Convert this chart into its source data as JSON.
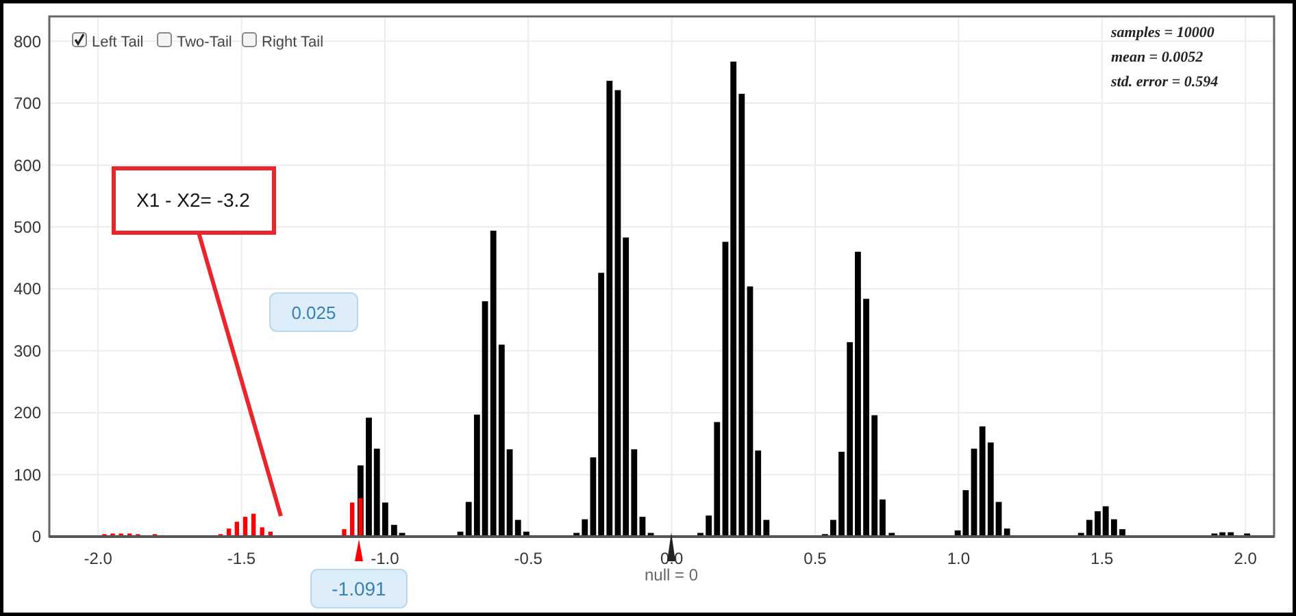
{
  "chart_data": {
    "type": "bar",
    "grid": true,
    "xlim": [
      -2.17,
      2.1
    ],
    "ylim": [
      0,
      840
    ],
    "xticks": [
      {
        "value": -2,
        "label": "-2.0"
      },
      {
        "value": -1.5,
        "label": "-1.5"
      },
      {
        "value": -1,
        "label": "-1.0"
      },
      {
        "value": -0.5,
        "label": "-0.5"
      },
      {
        "value": 0,
        "label": "0.0"
      },
      {
        "value": 0.5,
        "label": "0.5"
      },
      {
        "value": 1,
        "label": "1.0"
      },
      {
        "value": 1.5,
        "label": "1.5"
      },
      {
        "value": 2,
        "label": "2.0"
      }
    ],
    "yticks": [
      0,
      100,
      200,
      300,
      400,
      500,
      600,
      700,
      800
    ],
    "series": [
      {
        "color": "#000000",
        "x": [
          -1.085,
          -1.056,
          -1.028,
          -0.999,
          -0.968,
          -0.94,
          -0.737,
          -0.708,
          -0.679,
          -0.651,
          -0.622,
          -0.593,
          -0.565,
          -0.536,
          -0.507,
          -0.332,
          -0.303,
          -0.274,
          -0.246,
          -0.217,
          -0.188,
          -0.16,
          -0.131,
          -0.102,
          -0.073,
          0.1,
          0.129,
          0.158,
          0.187,
          0.215,
          0.244,
          0.273,
          0.301,
          0.33,
          0.534,
          0.563,
          0.592,
          0.621,
          0.649,
          0.678,
          0.707,
          0.735,
          0.767,
          0.997,
          1.025,
          1.054,
          1.083,
          1.112,
          1.14,
          1.169,
          1.427,
          1.456,
          1.485,
          1.513,
          1.542,
          1.571,
          1.892,
          1.92,
          1.949,
          2.006
        ],
        "values": [
          115,
          192,
          142,
          55,
          19,
          6,
          8,
          56,
          197,
          380,
          494,
          310,
          141,
          27,
          8,
          6,
          28,
          128,
          426,
          736,
          721,
          483,
          141,
          32,
          6,
          6,
          34,
          185,
          476,
          767,
          715,
          404,
          139,
          27,
          4,
          27,
          137,
          314,
          460,
          384,
          196,
          60,
          6,
          10,
          75,
          142,
          178,
          152,
          56,
          13,
          6,
          27,
          41,
          49,
          28,
          12,
          5,
          7,
          7,
          5
        ]
      },
      {
        "color": "#ff0000",
        "x": [
          -1.978,
          -1.949,
          -1.92,
          -1.89,
          -1.861,
          -1.802,
          -1.573,
          -1.544,
          -1.516,
          -1.487,
          -1.458,
          -1.428,
          -1.399,
          -1.142,
          -1.114,
          -1.085
        ],
        "values": [
          4,
          5,
          5,
          5,
          4,
          4,
          4,
          13,
          24,
          32,
          37,
          15,
          8,
          12,
          55,
          62
        ]
      }
    ],
    "annotations": [
      "X1 - X2= -3.2",
      "0.025",
      "-1.091",
      "null = 0",
      "samples = 10000",
      "mean = 0.0052",
      "std. error = 0.594",
      "Left Tail",
      "Two-Tail",
      "Right Tail"
    ]
  }
}
